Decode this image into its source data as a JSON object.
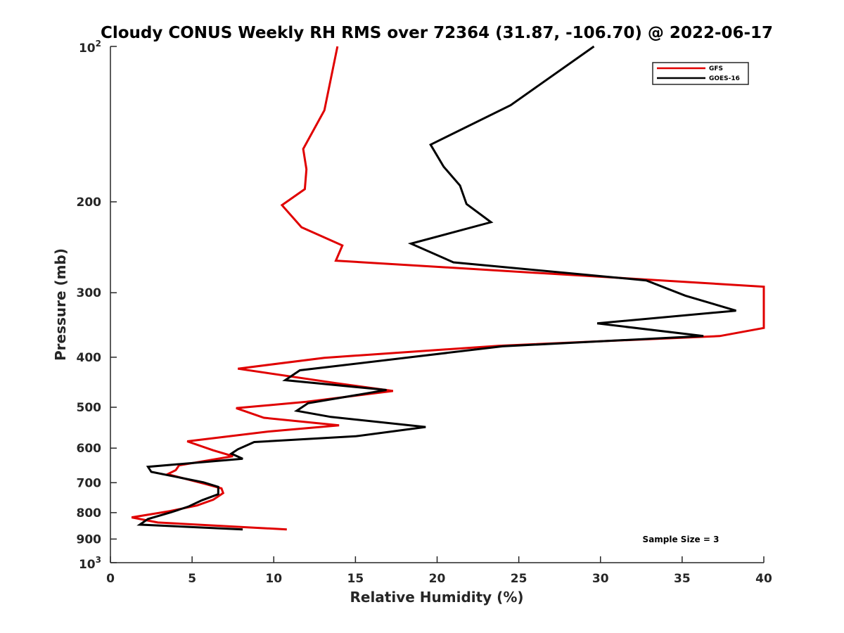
{
  "chart_data": {
    "type": "line",
    "title": "Cloudy CONUS Weekly RH RMS over 72364 (31.87, -106.70) @ 2022-06-17",
    "xlabel": "Relative Humidity (%)",
    "ylabel": "Pressure (mb)",
    "xlim": [
      0,
      40
    ],
    "ylim": [
      100,
      1000
    ],
    "y_scale": "log",
    "y_reversed": true,
    "x_ticks": [
      "0",
      "5",
      "10",
      "15",
      "20",
      "25",
      "30",
      "35",
      "40"
    ],
    "y_ticks": [
      {
        "value": 100,
        "base": "10",
        "exp": "2"
      },
      {
        "value": 200,
        "label": "200"
      },
      {
        "value": 300,
        "label": "300"
      },
      {
        "value": 400,
        "label": "400"
      },
      {
        "value": 500,
        "label": "500"
      },
      {
        "value": 600,
        "label": "600"
      },
      {
        "value": 700,
        "label": "700"
      },
      {
        "value": 800,
        "label": "800"
      },
      {
        "value": 900,
        "label": "900"
      },
      {
        "value": 1000,
        "base": "10",
        "exp": "3"
      }
    ],
    "legend_position": "top-right",
    "annotation": "Sample Size = 3",
    "series": [
      {
        "name": "GFS",
        "color": "#e00000",
        "points": [
          [
            10.8,
            862
          ],
          [
            2.9,
            836
          ],
          [
            1.3,
            817
          ],
          [
            3.6,
            795
          ],
          [
            5.3,
            775
          ],
          [
            6.3,
            755
          ],
          [
            6.9,
            733
          ],
          [
            6.8,
            718
          ],
          [
            5.8,
            704
          ],
          [
            3.5,
            674
          ],
          [
            4.0,
            662
          ],
          [
            4.2,
            648
          ],
          [
            7.5,
            622
          ],
          [
            6.3,
            606
          ],
          [
            4.7,
            582
          ],
          [
            9.7,
            557
          ],
          [
            14.0,
            542
          ],
          [
            9.4,
            524
          ],
          [
            7.7,
            502
          ],
          [
            12.0,
            488
          ],
          [
            17.3,
            465
          ],
          [
            13.8,
            449
          ],
          [
            7.8,
            421
          ],
          [
            13.1,
            401
          ],
          [
            23.8,
            380
          ],
          [
            37.3,
            364
          ],
          [
            40.0,
            351
          ],
          [
            40.0,
            292
          ],
          [
            13.8,
            260
          ],
          [
            14.2,
            243
          ],
          [
            11.7,
            224
          ],
          [
            10.5,
            203
          ],
          [
            11.9,
            189
          ],
          [
            12.0,
            173
          ],
          [
            11.8,
            158
          ],
          [
            13.1,
            133
          ],
          [
            13.9,
            100
          ]
        ]
      },
      {
        "name": "GOES-16",
        "color": "#000000",
        "points": [
          [
            8.1,
            862
          ],
          [
            1.8,
            844
          ],
          [
            2.3,
            823
          ],
          [
            3.7,
            799
          ],
          [
            4.8,
            778
          ],
          [
            5.6,
            757
          ],
          [
            6.6,
            737
          ],
          [
            6.6,
            713
          ],
          [
            5.7,
            699
          ],
          [
            2.5,
            667
          ],
          [
            2.3,
            652
          ],
          [
            8.1,
            629
          ],
          [
            7.4,
            615
          ],
          [
            7.8,
            603
          ],
          [
            8.8,
            584
          ],
          [
            15.0,
            569
          ],
          [
            19.3,
            546
          ],
          [
            13.5,
            522
          ],
          [
            11.4,
            508
          ],
          [
            12.1,
            491
          ],
          [
            16.9,
            463
          ],
          [
            10.7,
            443
          ],
          [
            11.6,
            424
          ],
          [
            24.0,
            381
          ],
          [
            36.3,
            364
          ],
          [
            29.8,
            344
          ],
          [
            38.3,
            325
          ],
          [
            35.2,
            304
          ],
          [
            32.8,
            284
          ],
          [
            21.0,
            262
          ],
          [
            18.4,
            241
          ],
          [
            23.3,
            219
          ],
          [
            21.8,
            202
          ],
          [
            21.4,
            186
          ],
          [
            20.4,
            171
          ],
          [
            19.6,
            155
          ],
          [
            24.5,
            130
          ],
          [
            29.6,
            100
          ]
        ]
      }
    ]
  }
}
